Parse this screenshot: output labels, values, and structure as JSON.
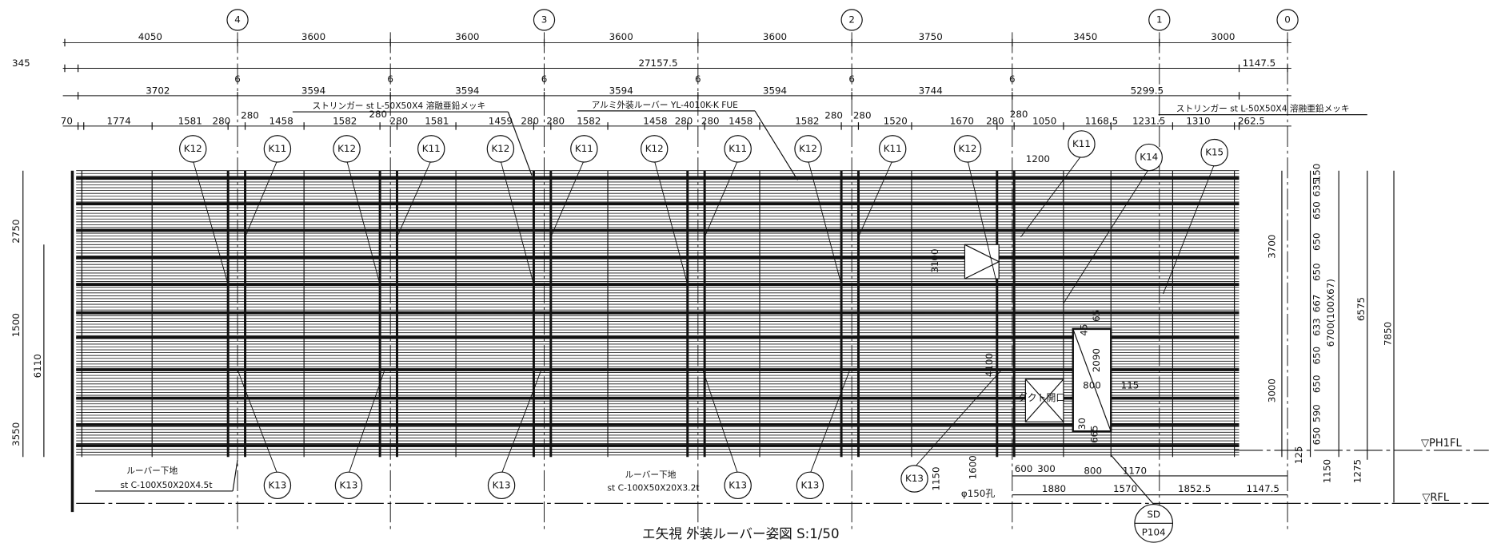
{
  "grid_axes": [
    "4",
    "3",
    "2",
    "1",
    "0"
  ],
  "dims_row1": [
    "4050",
    "3600",
    "3600",
    "3600",
    "3600",
    "3750",
    "3450",
    "3000"
  ],
  "dims_row2": [
    "345",
    "27157.5",
    "1147.5"
  ],
  "stringer_marks": [
    "6",
    "6",
    "6",
    "6",
    "6",
    "6"
  ],
  "dims_row3": [
    "3702",
    "3594",
    "3594",
    "3594",
    "3594",
    "3744",
    "5299.5"
  ],
  "notes": [
    "ストリンガー st L-50X50X4 溶融亜鉛メッキ",
    "アルミ外装ルーバー YL-4010K-K FUE",
    "ストリンガー st L-50X50X4 溶融亜鉛メッキ"
  ],
  "dims_row4": [
    "70",
    "1774",
    "1581",
    "280",
    "280",
    "1458",
    "1582",
    "280",
    "280",
    "1581",
    "1459",
    "280",
    "280",
    "1582",
    "1458",
    "280",
    "280",
    "1458",
    "1582",
    "280",
    "280",
    "1520",
    "1670",
    "280",
    "280",
    "1050",
    "1168.5",
    "1231.5",
    "1310",
    "262.5"
  ],
  "tags_top": [
    "K12",
    "K11",
    "K12",
    "K11",
    "K12",
    "K11",
    "K12",
    "K11",
    "K12",
    "K11",
    "K12",
    "K11",
    "K14",
    "K15"
  ],
  "tags_bottom": [
    "K13",
    "K13",
    "K13",
    "K13",
    "K13",
    "K13"
  ],
  "dims_left": [
    "2750",
    "1500",
    "6110",
    "3550"
  ],
  "dims_right": [
    "150",
    "635",
    "650",
    "650",
    "650",
    "667",
    "633",
    "650",
    "650",
    "590",
    "650",
    "125",
    "3700",
    "3000",
    "6700(100X67)",
    "6575",
    "7850",
    "1150",
    "1275"
  ],
  "levels": [
    "▽PH1FL",
    "▽RFL"
  ],
  "dims_bottom": [
    "1200",
    "600",
    "300",
    "800",
    "1170",
    "1880",
    "1570",
    "1852.5",
    "1147.5",
    "φ150孔",
    "1150",
    "1600"
  ],
  "opening": [
    "2090",
    "800",
    "115",
    "ダクト開口",
    "4100",
    "3100",
    "30",
    "665",
    "45",
    "65"
  ],
  "base_notes": [
    "ルーバー下地",
    "st C-100X50X20X4.5t",
    "ルーバー下地",
    "st C-100X50X20X3.2t"
  ],
  "detail_ref": [
    "SD",
    "P104"
  ],
  "title": "エ矢視 外装ルーバー姿図 S:1/50"
}
